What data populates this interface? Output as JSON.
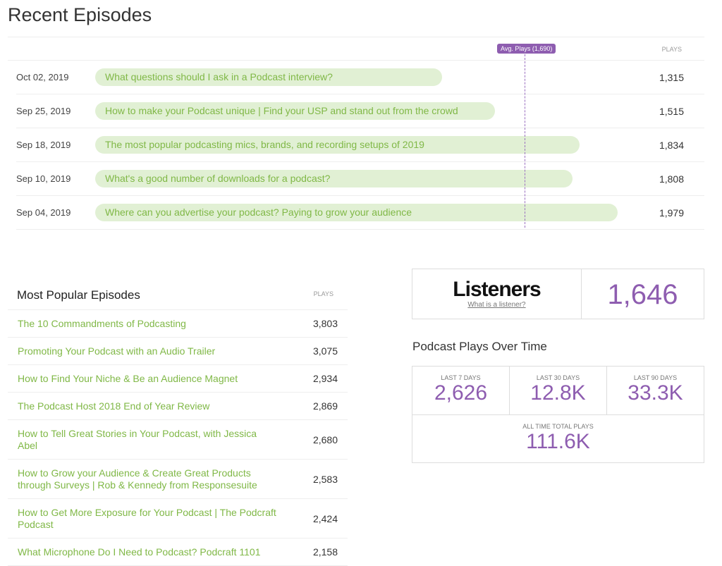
{
  "recent": {
    "title": "Recent Episodes",
    "plays_header": "PLAYS",
    "avg_label": "Avg. Plays (1,690)",
    "avg_value": 1690,
    "bar_color": "#e1f0d4",
    "accent": "#8e5db0",
    "episodes": [
      {
        "date": "Oct 02, 2019",
        "title": "What questions should I ask in a Podcast interview?",
        "plays": "1,315",
        "value": 1315
      },
      {
        "date": "Sep 25, 2019",
        "title": "How to make your Podcast unique | Find your USP and stand out from the crowd",
        "plays": "1,515",
        "value": 1515
      },
      {
        "date": "Sep 18, 2019",
        "title": "The most popular podcasting mics, brands, and recording setups of 2019",
        "plays": "1,834",
        "value": 1834
      },
      {
        "date": "Sep 10, 2019",
        "title": "What's a good number of downloads for a podcast?",
        "plays": "1,808",
        "value": 1808
      },
      {
        "date": "Sep 04, 2019",
        "title": "Where can you advertise your podcast? Paying to grow your audience",
        "plays": "1,979",
        "value": 1979
      }
    ]
  },
  "popular": {
    "title": "Most Popular Episodes",
    "plays_header": "PLAYS",
    "items": [
      {
        "title": "The 10 Commandments of Podcasting",
        "plays": "3,803"
      },
      {
        "title": "Promoting Your Podcast with an Audio Trailer",
        "plays": "3,075"
      },
      {
        "title": "How to Find Your Niche & Be an Audience Magnet",
        "plays": "2,934"
      },
      {
        "title": "The Podcast Host 2018 End of Year Review",
        "plays": "2,869"
      },
      {
        "title": "How to Tell Great Stories in Your Podcast, with Jessica Abel",
        "plays": "2,680"
      },
      {
        "title": "How to Grow your Audience & Create Great Products through Surveys | Rob & Kennedy from Responsesuite",
        "plays": "2,583"
      },
      {
        "title": "How to Get More Exposure for Your Podcast | The Podcraft Podcast",
        "plays": "2,424"
      },
      {
        "title": "What Microphone Do I Need to Podcast? Podcraft 1101",
        "plays": "2,158"
      }
    ]
  },
  "listeners": {
    "label": "Listeners",
    "link": "What is a listener?",
    "value": "1,646"
  },
  "plays_over_time": {
    "title": "Podcast Plays Over Time",
    "last7": {
      "label": "Last 7 Days",
      "value": "2,626"
    },
    "last30": {
      "label": "Last 30 Days",
      "value": "12.8K"
    },
    "last90": {
      "label": "Last 90 Days",
      "value": "33.3K"
    },
    "all_time": {
      "label": "All Time Total Plays",
      "value": "111.6K"
    }
  }
}
